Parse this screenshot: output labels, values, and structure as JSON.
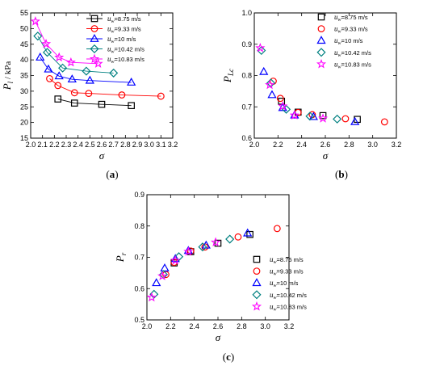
{
  "chart_data": [
    {
      "type": "line",
      "panel_label": "(a)",
      "xlabel": "σ",
      "ylabel": "P",
      "ylabel_sub": "l",
      "ylabel_suffix": " / kPa",
      "xlim": [
        2.0,
        3.2
      ],
      "ylim": [
        15,
        55
      ],
      "xticks": [
        "2.0",
        "2.1",
        "2.2",
        "2.3",
        "2.4",
        "2.5",
        "2.6",
        "2.7",
        "2.8",
        "2.9",
        "3.0",
        "3.1",
        "3.2"
      ],
      "yticks": [
        "15",
        "20",
        "25",
        "30",
        "35",
        "40",
        "45",
        "50",
        "55"
      ],
      "legend_position": "top-right",
      "series": [
        {
          "name": "=8.75 m/s",
          "color": "#000000",
          "marker": "square",
          "x": [
            2.23,
            2.37,
            2.6,
            2.85
          ],
          "y": [
            27.5,
            26.2,
            25.8,
            25.4
          ]
        },
        {
          "name": "=9.33 m/s",
          "color": "#ff0000",
          "marker": "circle",
          "x": [
            2.16,
            2.23,
            2.37,
            2.49,
            2.77,
            3.1
          ],
          "y": [
            34.0,
            31.8,
            29.5,
            29.3,
            28.8,
            28.4
          ]
        },
        {
          "name": "=10 m/s",
          "color": "#0000ff",
          "marker": "triangle",
          "x": [
            2.08,
            2.15,
            2.24,
            2.35,
            2.5,
            2.85
          ],
          "y": [
            40.8,
            37.0,
            34.8,
            33.8,
            33.4,
            32.8
          ]
        },
        {
          "name": "=10.42 m/s",
          "color": "#008080",
          "marker": "diamond",
          "x": [
            2.06,
            2.14,
            2.27,
            2.47,
            2.7
          ],
          "y": [
            47.6,
            42.4,
            37.4,
            36.4,
            35.8
          ]
        },
        {
          "name": "=10.83 m/s",
          "color": "#ff00ff",
          "marker": "star",
          "x": [
            2.04,
            2.13,
            2.24,
            2.34,
            2.57
          ],
          "y": [
            52.3,
            45.1,
            40.8,
            39.2,
            38.8
          ]
        }
      ]
    },
    {
      "type": "scatter",
      "panel_label": "(b)",
      "xlabel": "σ",
      "ylabel": "P",
      "ylabel_sub": "Lc",
      "ylabel_suffix": "",
      "xlim": [
        2.0,
        3.2
      ],
      "ylim": [
        0.6,
        1.0
      ],
      "xticks": [
        "2.0",
        "2.2",
        "2.4",
        "2.6",
        "2.8",
        "3.0",
        "3.2"
      ],
      "yticks": [
        "0.6",
        "0.7",
        "0.8",
        "0.9",
        "1.0"
      ],
      "legend_position": "top-right",
      "series": [
        {
          "name": "=8.75 m/s",
          "color": "#000000",
          "marker": "square",
          "x": [
            2.23,
            2.37,
            2.58,
            2.87
          ],
          "y": [
            0.718,
            0.683,
            0.672,
            0.66
          ]
        },
        {
          "name": "=9.33 m/s",
          "color": "#ff0000",
          "marker": "circle",
          "x": [
            2.16,
            2.22,
            2.37,
            2.49,
            2.77,
            3.1
          ],
          "y": [
            0.782,
            0.727,
            0.682,
            0.675,
            0.662,
            0.652
          ]
        },
        {
          "name": "=10 m/s",
          "color": "#0000ff",
          "marker": "triangle",
          "x": [
            2.08,
            2.15,
            2.24,
            2.34,
            2.5,
            2.85
          ],
          "y": [
            0.812,
            0.738,
            0.697,
            0.673,
            0.668,
            0.652
          ]
        },
        {
          "name": "=10.42 m/s",
          "color": "#008080",
          "marker": "diamond",
          "x": [
            2.06,
            2.14,
            2.27,
            2.47,
            2.7
          ],
          "y": [
            0.88,
            0.776,
            0.692,
            0.67,
            0.661
          ]
        },
        {
          "name": "=10.83 m/s",
          "color": "#ff00ff",
          "marker": "star",
          "x": [
            2.05,
            2.13,
            2.24,
            2.34,
            2.58
          ],
          "y": [
            0.888,
            0.77,
            0.702,
            0.673,
            0.663
          ]
        }
      ]
    },
    {
      "type": "scatter",
      "panel_label": "(c)",
      "xlabel": "σ",
      "ylabel": "P",
      "ylabel_sub": "r",
      "ylabel_suffix": "",
      "xlim": [
        2.0,
        3.2
      ],
      "ylim": [
        0.5,
        0.9
      ],
      "xticks": [
        "2.0",
        "2.2",
        "2.4",
        "2.6",
        "2.8",
        "3.0",
        "3.2"
      ],
      "yticks": [
        "0.5",
        "0.6",
        "0.7",
        "0.8",
        "0.9"
      ],
      "legend_position": "bottom-right",
      "series": [
        {
          "name": "=8.75 m/s",
          "color": "#000000",
          "marker": "square",
          "x": [
            2.23,
            2.37,
            2.6,
            2.87
          ],
          "y": [
            0.682,
            0.718,
            0.745,
            0.773
          ]
        },
        {
          "name": "=9.33 m/s",
          "color": "#ff0000",
          "marker": "circle",
          "x": [
            2.16,
            2.23,
            2.37,
            2.49,
            2.77,
            3.1
          ],
          "y": [
            0.645,
            0.684,
            0.72,
            0.733,
            0.765,
            0.792
          ]
        },
        {
          "name": "=10 m/s",
          "color": "#0000ff",
          "marker": "triangle",
          "x": [
            2.08,
            2.15,
            2.24,
            2.35,
            2.5,
            2.85
          ],
          "y": [
            0.618,
            0.665,
            0.695,
            0.721,
            0.738,
            0.777
          ]
        },
        {
          "name": "=10.42 m/s",
          "color": "#008080",
          "marker": "diamond",
          "x": [
            2.06,
            2.14,
            2.27,
            2.47,
            2.7
          ],
          "y": [
            0.582,
            0.645,
            0.702,
            0.733,
            0.758
          ]
        },
        {
          "name": "=10.83 m/s",
          "color": "#ff00ff",
          "marker": "star",
          "x": [
            2.04,
            2.13,
            2.24,
            2.35,
            2.58
          ],
          "y": [
            0.572,
            0.64,
            0.69,
            0.718,
            0.748
          ]
        }
      ]
    }
  ],
  "legend_symbol": "u",
  "legend_sub": "w"
}
